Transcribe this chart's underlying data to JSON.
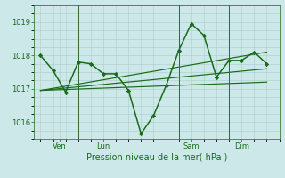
{
  "bg_color": "#cce8e8",
  "grid_color": "#aacccc",
  "line_color": "#1a6b1a",
  "marker_color": "#1a6b1a",
  "xlabel": "Pression niveau de la mer( hPa )",
  "xlabel_color": "#1a6b1a",
  "tick_color": "#1a6b1a",
  "ylim": [
    1015.5,
    1019.5
  ],
  "yticks": [
    1016,
    1017,
    1018,
    1019
  ],
  "series_main": {
    "x": [
      0,
      1,
      2,
      3,
      4,
      5,
      6,
      7,
      8,
      9,
      10,
      11,
      12,
      13,
      14,
      15,
      16,
      17,
      18
    ],
    "y": [
      1018.0,
      1017.55,
      1016.9,
      1017.8,
      1017.75,
      1017.45,
      1017.45,
      1016.95,
      1015.65,
      1016.2,
      1017.1,
      1018.15,
      1018.95,
      1018.6,
      1017.35,
      1017.85,
      1017.85,
      1018.1,
      1017.75
    ],
    "linewidth": 1.1,
    "marker": "D",
    "markersize": 2.2
  },
  "trend_lines": [
    {
      "x": [
        0,
        18
      ],
      "y": [
        1016.95,
        1017.2
      ],
      "linewidth": 0.85
    },
    {
      "x": [
        0,
        18
      ],
      "y": [
        1016.95,
        1017.6
      ],
      "linewidth": 0.85
    },
    {
      "x": [
        0,
        18
      ],
      "y": [
        1016.95,
        1018.1
      ],
      "linewidth": 0.85
    }
  ],
  "vlines_x": [
    3,
    11,
    15
  ],
  "vline_color": "#336633",
  "day_labels": [
    {
      "label": "Ven",
      "x": 1.5
    },
    {
      "label": "Lun",
      "x": 5
    },
    {
      "label": "Sam",
      "x": 12
    },
    {
      "label": "Dim",
      "x": 16
    }
  ],
  "xlim": [
    -0.5,
    19
  ],
  "figsize": [
    3.2,
    2.0
  ],
  "dpi": 100
}
